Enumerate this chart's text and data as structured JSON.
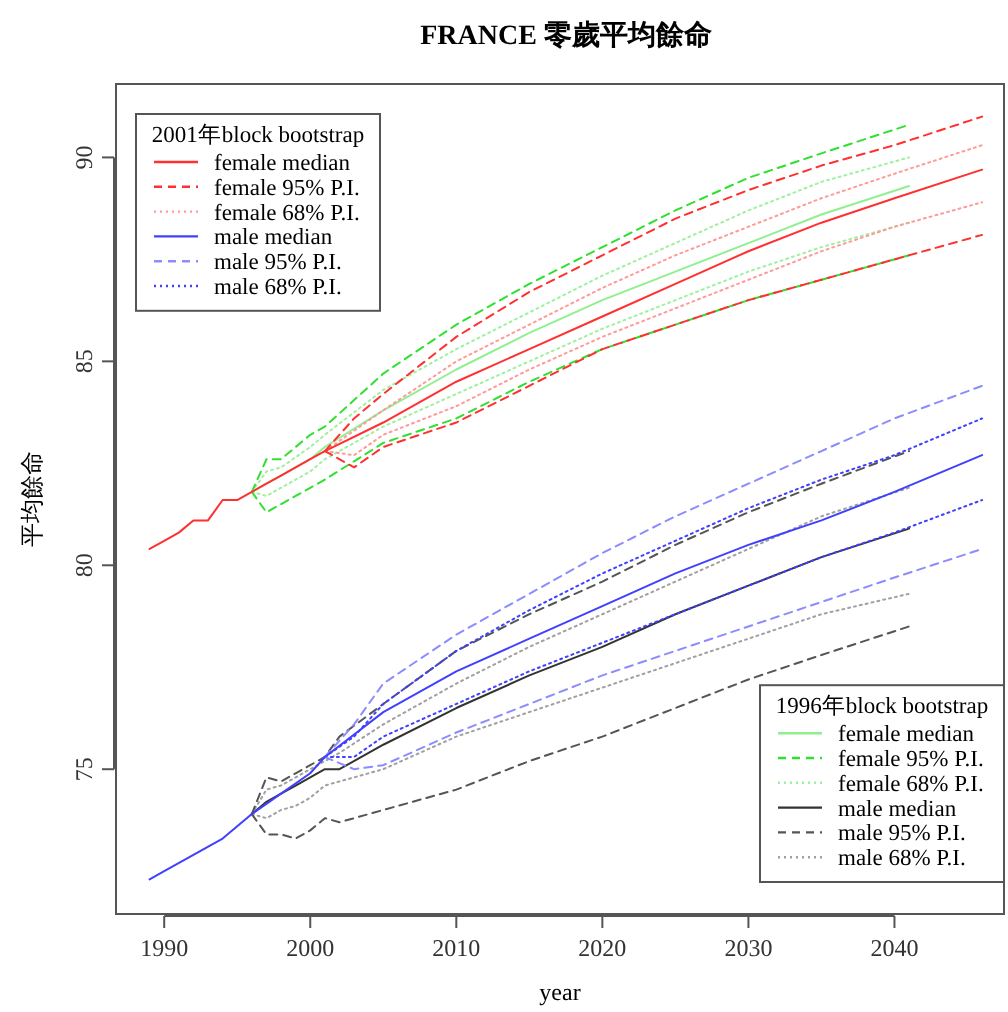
{
  "chart_data": {
    "type": "line",
    "title": "FRANCE 零歲平均餘命",
    "xlabel": "year",
    "ylabel": "平均餘命",
    "legend_title": [
      "2001年block bootstrap",
      "1996年block bootstrap"
    ],
    "legend": [
      "top left",
      "bottom right"
    ],
    "xlim": [
      1986.7,
      2047.5
    ],
    "ylim": [
      71.45,
      91.8
    ],
    "xticks": [
      1990,
      2000,
      2010,
      2020,
      2030,
      2040
    ],
    "yticks": [
      75,
      80,
      85,
      90
    ],
    "series": [
      {
        "name": "female median",
        "color": "#ff3030",
        "line_style": "solid",
        "x": [
          1989,
          1990,
          1991,
          1992,
          1993,
          1994,
          1995,
          1996,
          1997,
          1998,
          1999,
          2000,
          2001,
          2005,
          2010,
          2015,
          2020,
          2025,
          2030,
          2035,
          2040,
          2046
        ],
        "values": [
          80.4,
          80.6,
          80.8,
          81.1,
          81.1,
          81.6,
          81.6,
          81.8,
          82.0,
          82.2,
          82.4,
          82.6,
          82.8,
          83.5,
          84.5,
          85.3,
          86.1,
          86.9,
          87.7,
          88.4,
          89.0,
          89.7
        ]
      },
      {
        "name": "female 95% P.I.",
        "color": "#ff3030",
        "line_style": "dashed",
        "x": [
          2001,
          2003,
          2005,
          2010,
          2015,
          2020,
          2025,
          2030,
          2035,
          2040,
          2046,
          null,
          2001,
          2003,
          2005,
          2010,
          2015,
          2020,
          2025,
          2030,
          2035,
          2040,
          2046
        ],
        "values": [
          82.8,
          83.6,
          84.2,
          85.6,
          86.7,
          87.6,
          88.5,
          89.2,
          89.8,
          90.3,
          91.0,
          null,
          82.8,
          82.4,
          82.9,
          83.5,
          84.4,
          85.3,
          85.9,
          86.5,
          87.0,
          87.5,
          88.1
        ]
      },
      {
        "name": "female 68% P.I.",
        "color": "#ff9a9a",
        "line_style": "dotted",
        "x": [
          2001,
          2003,
          2005,
          2010,
          2015,
          2020,
          2025,
          2030,
          2035,
          2040,
          2046,
          null,
          2001,
          2003,
          2005,
          2010,
          2015,
          2020,
          2025,
          2030,
          2035,
          2040,
          2046
        ],
        "values": [
          82.8,
          83.3,
          83.8,
          85.0,
          85.9,
          86.8,
          87.6,
          88.3,
          89.0,
          89.6,
          90.3,
          null,
          82.8,
          82.7,
          83.2,
          83.9,
          84.8,
          85.6,
          86.3,
          87.0,
          87.7,
          88.3,
          88.9
        ]
      },
      {
        "name": "male median",
        "color": "#4040ff",
        "line_style": "solid",
        "x": [
          1989,
          1990,
          1992,
          1994,
          1996,
          1998,
          2000,
          2001,
          2005,
          2010,
          2015,
          2020,
          2025,
          2030,
          2035,
          2040,
          2046
        ],
        "values": [
          72.3,
          72.5,
          72.9,
          73.3,
          73.9,
          74.4,
          74.9,
          75.3,
          76.4,
          77.4,
          78.2,
          79.0,
          79.8,
          80.5,
          81.1,
          81.8,
          82.7
        ]
      },
      {
        "name": "male 95% P.I.",
        "color": "#8c8cff",
        "line_style": "dashed",
        "x": [
          2001,
          2003,
          2005,
          2010,
          2015,
          2020,
          2025,
          2030,
          2035,
          2040,
          2046,
          null,
          2001,
          2003,
          2005,
          2010,
          2015,
          2020,
          2025,
          2030,
          2035,
          2040,
          2046
        ],
        "values": [
          75.3,
          76.1,
          77.1,
          78.3,
          79.3,
          80.3,
          81.2,
          82.0,
          82.8,
          83.6,
          84.4,
          null,
          75.3,
          75.0,
          75.1,
          75.9,
          76.6,
          77.3,
          77.9,
          78.5,
          79.1,
          79.7,
          80.4
        ]
      },
      {
        "name": "male 68% P.I.",
        "color": "#4040ff",
        "line_style": "dotted",
        "x": [
          2001,
          2003,
          2005,
          2010,
          2015,
          2020,
          2025,
          2030,
          2035,
          2040,
          2046,
          null,
          2001,
          2003,
          2005,
          2010,
          2015,
          2020,
          2025,
          2030,
          2035,
          2040,
          2046
        ],
        "values": [
          75.3,
          75.8,
          76.6,
          77.9,
          78.9,
          79.8,
          80.6,
          81.4,
          82.1,
          82.7,
          83.6,
          null,
          75.3,
          75.3,
          75.8,
          76.6,
          77.4,
          78.1,
          78.8,
          79.5,
          80.2,
          80.8,
          81.6
        ]
      },
      {
        "name": "female median",
        "color": "#90f090",
        "line_style": "solid",
        "x": [
          1996,
          1997,
          1998,
          2000,
          2001,
          2005,
          2010,
          2015,
          2020,
          2025,
          2030,
          2035,
          2041
        ],
        "values": [
          81.8,
          82.0,
          82.2,
          82.6,
          82.9,
          83.8,
          84.8,
          85.7,
          86.5,
          87.2,
          87.9,
          88.6,
          89.3
        ]
      },
      {
        "name": "female 95% P.I.",
        "color": "#30e030",
        "line_style": "dashed",
        "x": [
          1996,
          1997,
          1998,
          2000,
          2001,
          2005,
          2010,
          2015,
          2020,
          2025,
          2030,
          2035,
          2041,
          null,
          1996,
          1997,
          1998,
          2000,
          2001,
          2005,
          2010,
          2015,
          2020,
          2025,
          2030,
          2035,
          2041
        ],
        "values": [
          81.8,
          82.6,
          82.6,
          83.2,
          83.4,
          84.7,
          85.9,
          86.9,
          87.8,
          88.7,
          89.5,
          90.1,
          90.8,
          null,
          81.8,
          81.3,
          81.5,
          81.9,
          82.1,
          83.0,
          83.6,
          84.5,
          85.3,
          85.9,
          86.5,
          87.0,
          87.6
        ]
      },
      {
        "name": "female 68% P.I.",
        "color": "#a0f0a0",
        "line_style": "dotted",
        "x": [
          1996,
          1997,
          1998,
          2000,
          2001,
          2005,
          2010,
          2015,
          2020,
          2025,
          2030,
          2035,
          2041,
          null,
          1996,
          1997,
          1998,
          2000,
          2001,
          2005,
          2010,
          2015,
          2020,
          2025,
          2030,
          2035,
          2041
        ],
        "values": [
          81.8,
          82.3,
          82.4,
          82.9,
          83.2,
          84.3,
          85.3,
          86.2,
          87.1,
          87.9,
          88.7,
          89.4,
          90.0,
          null,
          81.8,
          81.7,
          81.9,
          82.3,
          82.6,
          83.4,
          84.2,
          85.0,
          85.8,
          86.5,
          87.2,
          87.8,
          88.4
        ]
      },
      {
        "name": "male median",
        "color": "#333333",
        "line_style": "solid",
        "x": [
          1996,
          1997,
          1998,
          1999,
          2000,
          2001,
          2002,
          2005,
          2010,
          2015,
          2020,
          2025,
          2030,
          2035,
          2041
        ],
        "values": [
          73.9,
          74.2,
          74.4,
          74.6,
          74.8,
          75.0,
          75.0,
          75.6,
          76.5,
          77.3,
          78.0,
          78.8,
          79.5,
          80.2,
          80.9
        ]
      },
      {
        "name": "male 95% P.I.",
        "color": "#555555",
        "line_style": "dashed",
        "x": [
          1996,
          1997,
          1998,
          1999,
          2000,
          2001,
          2002,
          2005,
          2010,
          2015,
          2020,
          2025,
          2030,
          2035,
          2041,
          null,
          1996,
          1997,
          1998,
          1999,
          2000,
          2001,
          2002,
          2005,
          2010,
          2015,
          2020,
          2025,
          2030,
          2035,
          2041
        ],
        "values": [
          73.9,
          74.8,
          74.7,
          74.9,
          75.1,
          75.3,
          75.8,
          76.6,
          77.9,
          78.8,
          79.6,
          80.5,
          81.3,
          82.0,
          82.8,
          null,
          73.9,
          73.4,
          73.4,
          73.3,
          73.5,
          73.8,
          73.7,
          74.0,
          74.5,
          75.2,
          75.8,
          76.5,
          77.2,
          77.8,
          78.5
        ]
      },
      {
        "name": "male 68% P.I.",
        "color": "#a0a0a0",
        "line_style": "dotted",
        "x": [
          1996,
          1997,
          1998,
          1999,
          2000,
          2001,
          2002,
          2005,
          2010,
          2015,
          2020,
          2025,
          2030,
          2035,
          2041,
          null,
          1996,
          1997,
          1998,
          1999,
          2000,
          2001,
          2002,
          2005,
          2010,
          2015,
          2020,
          2025,
          2030,
          2035,
          2041
        ],
        "values": [
          73.9,
          74.5,
          74.6,
          74.8,
          75.0,
          75.2,
          75.4,
          76.1,
          77.1,
          78.0,
          78.8,
          79.6,
          80.4,
          81.2,
          81.9,
          null,
          73.9,
          73.8,
          74.0,
          74.1,
          74.3,
          74.6,
          74.7,
          75.0,
          75.8,
          76.4,
          77.0,
          77.6,
          78.2,
          78.8,
          79.3
        ]
      }
    ]
  }
}
